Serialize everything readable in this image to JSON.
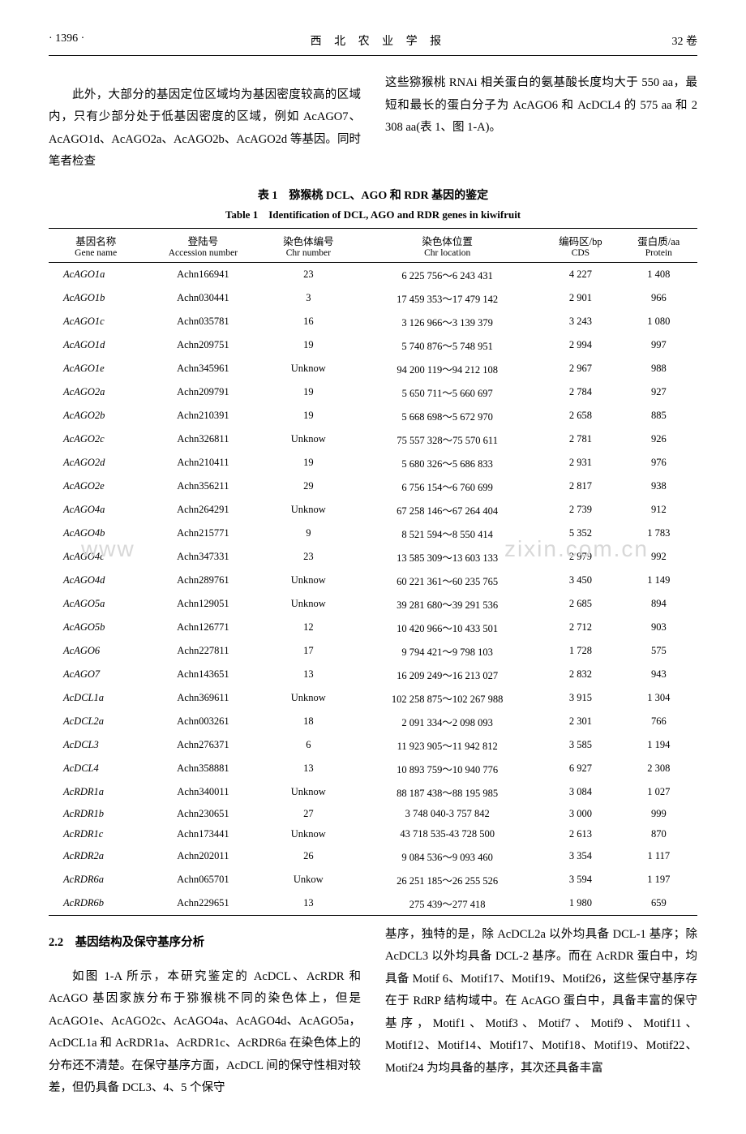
{
  "header": {
    "page_left": "· 1396 ·",
    "journal": "西 北 农 业 学 报",
    "page_right": "32 卷"
  },
  "para_top_left": "此外，大部分的基因定位区域均为基因密度较高的区域内，只有少部分处于低基因密度的区域，例如 AcAGO7、AcAGO1d、AcAGO2a、AcAGO2b、AcAGO2d 等基因。同时笔者检查",
  "para_top_right": "这些猕猴桃 RNAi 相关蛋白的氨基酸长度均大于 550 aa，最短和最长的蛋白分子为 AcAGO6 和 AcDCL4 的 575 aa 和 2 308 aa(表 1、图 1-A)。",
  "table": {
    "caption_cn": "表 1　猕猴桃 DCL、AGO 和 RDR 基因的鉴定",
    "caption_en": "Table 1　Identification of DCL, AGO and RDR genes in kiwifruit",
    "columns": [
      {
        "cn": "基因名称",
        "en": "Gene name"
      },
      {
        "cn": "登陆号",
        "en": "Accession number"
      },
      {
        "cn": "染色体编号",
        "en": "Chr number"
      },
      {
        "cn": "染色体位置",
        "en": "Chr location"
      },
      {
        "cn": "编码区/bp",
        "en": "CDS"
      },
      {
        "cn": "蛋白质/aa",
        "en": "Protein"
      }
    ],
    "rows": [
      [
        "AcAGO1a",
        "Achn166941",
        "23",
        "6 225 756～6 243 431",
        "4 227",
        "1 408"
      ],
      [
        "AcAGO1b",
        "Achn030441",
        "3",
        "17 459 353～17 479 142",
        "2 901",
        "966"
      ],
      [
        "AcAGO1c",
        "Achn035781",
        "16",
        "3 126 966～3 139 379",
        "3 243",
        "1 080"
      ],
      [
        "AcAGO1d",
        "Achn209751",
        "19",
        "5 740 876～5 748 951",
        "2 994",
        "997"
      ],
      [
        "AcAGO1e",
        "Achn345961",
        "Unknow",
        "94 200 119～94 212 108",
        "2 967",
        "988"
      ],
      [
        "AcAGO2a",
        "Achn209791",
        "19",
        "5 650 711～5 660 697",
        "2 784",
        "927"
      ],
      [
        "AcAGO2b",
        "Achn210391",
        "19",
        "5 668 698～5 672 970",
        "2 658",
        "885"
      ],
      [
        "AcAGO2c",
        "Achn326811",
        "Unknow",
        "75 557 328～75 570 611",
        "2 781",
        "926"
      ],
      [
        "AcAGO2d",
        "Achn210411",
        "19",
        "5 680 326～5 686 833",
        "2 931",
        "976"
      ],
      [
        "AcAGO2e",
        "Achn356211",
        "29",
        "6 756 154～6 760 699",
        "2 817",
        "938"
      ],
      [
        "AcAGO4a",
        "Achn264291",
        "Unknow",
        "67 258 146～67 264 404",
        "2 739",
        "912"
      ],
      [
        "AcAGO4b",
        "Achn215771",
        "9",
        "8 521 594～8 550 414",
        "5 352",
        "1 783"
      ],
      [
        "AcAGO4c",
        "Achn347331",
        "23",
        "13 585 309～13 603 133",
        "2 979",
        "992"
      ],
      [
        "AcAGO4d",
        "Achn289761",
        "Unknow",
        "60 221 361～60 235 765",
        "3 450",
        "1 149"
      ],
      [
        "AcAGO5a",
        "Achn129051",
        "Unknow",
        "39 281 680～39 291 536",
        "2 685",
        "894"
      ],
      [
        "AcAGO5b",
        "Achn126771",
        "12",
        "10 420 966～10 433 501",
        "2 712",
        "903"
      ],
      [
        "AcAGO6",
        "Achn227811",
        "17",
        "9 794 421～9 798 103",
        "1 728",
        "575"
      ],
      [
        "AcAGO7",
        "Achn143651",
        "13",
        "16 209 249～16 213 027",
        "2 832",
        "943"
      ],
      [
        "AcDCL1a",
        "Achn369611",
        "Unknow",
        "102 258 875～102 267 988",
        "3 915",
        "1 304"
      ],
      [
        "AcDCL2a",
        "Achn003261",
        "18",
        "2 091 334～2 098 093",
        "2 301",
        "766"
      ],
      [
        "AcDCL3",
        "Achn276371",
        "6",
        "11 923 905～11 942 812",
        "3 585",
        "1 194"
      ],
      [
        "AcDCL4",
        "Achn358881",
        "13",
        "10 893 759～10 940 776",
        "6 927",
        "2 308"
      ],
      [
        "AcRDR1a",
        "Achn340011",
        "Unknow",
        "88 187 438～88 195 985",
        "3 084",
        "1 027"
      ],
      [
        "AcRDR1b",
        "Achn230651",
        "27",
        "3 748 040-3 757 842",
        "3 000",
        "999"
      ],
      [
        "AcRDR1c",
        "Achn173441",
        "Unknow",
        "43 718 535-43 728 500",
        "2 613",
        "870"
      ],
      [
        "AcRDR2a",
        "Achn202011",
        "26",
        "9 084 536～9 093 460",
        "3 354",
        "1 117"
      ],
      [
        "AcRDR6a",
        "Achn065701",
        "Unkow",
        "26 251 185～26 255 526",
        "3 594",
        "1 197"
      ],
      [
        "AcRDR6b",
        "Achn229651",
        "13",
        "275 439～277 418",
        "1 980",
        "659"
      ]
    ]
  },
  "section22_head": "2.2　基因结构及保守基序分析",
  "para_bottom_left": "如图 1-A 所示，本研究鉴定的 AcDCL、AcRDR 和 AcAGO 基因家族分布于猕猴桃不同的染色体上，但是 AcAGO1e、AcAGO2c、AcAGO4a、AcAGO4d、AcAGO5a，AcDCL1a 和 AcRDR1a、AcRDR1c、AcRDR6a 在染色体上的分布还不清楚。在保守基序方面，AcDCL 间的保守性相对较差，但仍具备 DCL3、4、5 个保守",
  "para_bottom_right": "基序，独特的是，除 AcDCL2a 以外均具备 DCL-1 基序；除 AcDCL3 以外均具备 DCL-2 基序。而在 AcRDR 蛋白中，均具备 Motif 6、Motif17、Motif19、Motif26，这些保守基序存在于 RdRP 结构域中。在 AcAGO 蛋白中，具备丰富的保守基序，Motif1、Motif3、Motif7、Motif9、Motif11、Motif12、Motif14、Motif17、Motif18、Motif19、Motif22、Motif24 为均具备的基序，其次还具备丰富",
  "watermark": {
    "left": "www",
    "right": "zixin.com.cn"
  },
  "styling": {
    "background_color": "#ffffff",
    "text_color": "#000000",
    "watermark_color": "#d8d8d8",
    "body_fontsize_pt": 14.5,
    "table_fontsize_pt": 12.5,
    "table_border_color": "#000000",
    "line_height": 1.9
  }
}
